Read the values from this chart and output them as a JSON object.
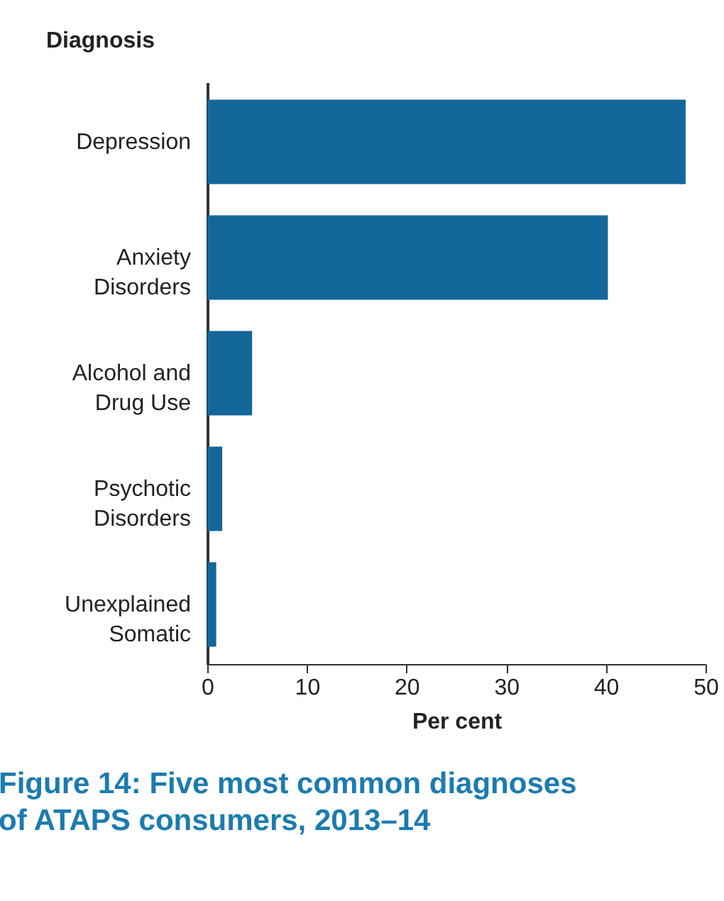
{
  "chart_data": {
    "type": "bar",
    "orientation": "horizontal",
    "title": "Figure 14: Five most common diagnoses\nof ATAPS consumers, 2013–14",
    "xlabel": "Per cent",
    "ylabel": "Diagnosis",
    "categories": [
      "Depression",
      "Anxiety\nDisorders",
      "Alcohol and\nDrug Use",
      "Psychotic\nDisorders",
      "Unexplained\nSomatic"
    ],
    "values": [
      48.0,
      40.2,
      4.5,
      1.5,
      0.9
    ],
    "color": "#13679a",
    "xlim": [
      0,
      50
    ],
    "xticks": [
      0,
      10,
      20,
      30,
      40,
      50
    ],
    "grid": false
  }
}
